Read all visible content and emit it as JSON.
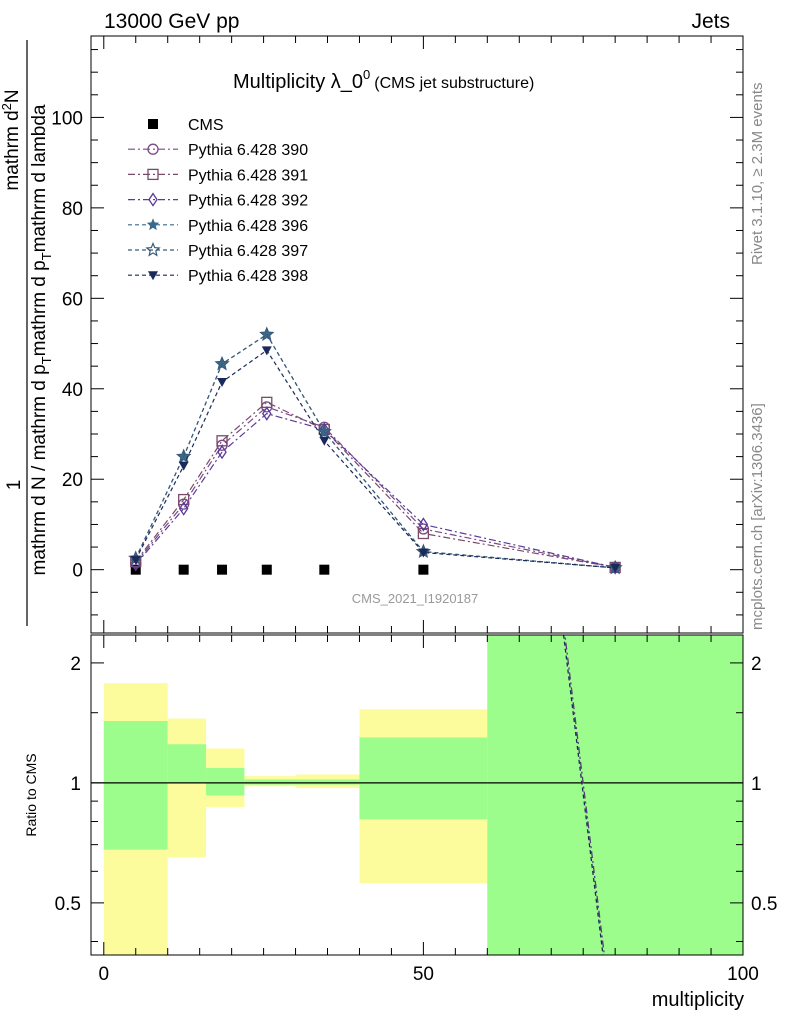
{
  "header": {
    "left": "13000 GeV pp",
    "right": "Jets"
  },
  "side_labels": {
    "right_top": "Rivet 3.1.10, ≥ 2.3M events",
    "right_bottom": "mcplots.cern.ch [arXiv:1306.3436]"
  },
  "chart_data": [
    {
      "type": "line",
      "title": "Multiplicity λ_0",
      "title_superscript": "0",
      "subtitle": "(CMS jet substructure)",
      "watermark": "CMS_2021_I1920187",
      "ylabel_parts": [
        "1",
        "mathrm d N / mathrm d p",
        "T",
        "mathrm d p",
        "T",
        "mathrm d lambda",
        "mathrm d",
        "2",
        "N"
      ],
      "ylim": [
        -14,
        118
      ],
      "xlim": [
        -2,
        100
      ],
      "yticks": [
        0,
        20,
        40,
        60,
        80,
        100
      ],
      "x": [
        5,
        12.5,
        18.5,
        25.5,
        34.5,
        50,
        80
      ],
      "series": [
        {
          "name": "CMS",
          "marker": "square",
          "color": "#000000",
          "dash": "none",
          "values": [
            0,
            0,
            0,
            0,
            0,
            0,
            null
          ]
        },
        {
          "name": "Pythia 6.428 390",
          "marker": "circle",
          "color": "#7a4a8a",
          "dash": "7,3,2,3",
          "values": [
            1.5,
            14.5,
            27.5,
            36,
            31.5,
            9,
            0.5
          ]
        },
        {
          "name": "Pythia 6.428 391",
          "marker": "square-open",
          "color": "#7a4a6a",
          "dash": "7,3,2,3",
          "values": [
            1.8,
            15.5,
            28.5,
            37,
            31,
            8,
            0.5
          ]
        },
        {
          "name": "Pythia 6.428 392",
          "marker": "diamond-open",
          "color": "#5a3a9a",
          "dash": "7,3,2,3",
          "values": [
            1.2,
            13.5,
            26,
            34.5,
            31,
            10,
            0.5
          ]
        },
        {
          "name": "Pythia 6.428 396",
          "marker": "star",
          "color": "#3a6a8a",
          "dash": "4,3",
          "values": [
            2.5,
            25,
            45.5,
            52,
            30.5,
            4,
            0.4
          ]
        },
        {
          "name": "Pythia 6.428 397",
          "marker": "star-open",
          "color": "#3a5a7a",
          "dash": "4,3",
          "values": [
            2.5,
            25,
            45.5,
            52,
            30.5,
            4,
            0.4
          ]
        },
        {
          "name": "Pythia 6.428 398",
          "marker": "triangle-down",
          "color": "#1a2a5a",
          "dash": "4,3",
          "values": [
            2.2,
            23,
            41.5,
            48.5,
            28.5,
            3.8,
            0.4
          ]
        }
      ]
    },
    {
      "type": "area",
      "ylabel": "Ratio to CMS",
      "xlabel": "multiplicity",
      "ylog": true,
      "ylim": [
        0.37,
        2.35
      ],
      "xlim": [
        -2,
        100
      ],
      "xticks": [
        0,
        50,
        100
      ],
      "yticks": [
        0.5,
        1,
        2
      ],
      "bands": [
        {
          "x0": 0,
          "x1": 10,
          "inner": [
            0.68,
            1.43
          ],
          "outer": [
            0.3,
            1.78
          ]
        },
        {
          "x0": 10,
          "x1": 16,
          "inner": [
            1.0,
            1.25
          ],
          "outer": [
            0.65,
            1.45
          ]
        },
        {
          "x0": 16,
          "x1": 22,
          "inner": [
            0.93,
            1.09
          ],
          "outer": [
            0.87,
            1.22
          ]
        },
        {
          "x0": 22,
          "x1": 30,
          "inner": [
            0.99,
            1.02
          ],
          "outer": [
            0.98,
            1.04
          ]
        },
        {
          "x0": 30,
          "x1": 40,
          "inner": [
            0.99,
            1.02
          ],
          "outer": [
            0.97,
            1.05
          ]
        },
        {
          "x0": 40,
          "x1": 60,
          "inner": [
            0.81,
            1.3
          ],
          "outer": [
            0.56,
            1.53
          ]
        },
        {
          "x0": 60,
          "x1": 100,
          "inner": [
            0.3,
            2.5
          ],
          "outer": [
            0.3,
            2.5
          ]
        }
      ],
      "ratio_lines": [
        {
          "color": "#5a3a7a",
          "dash": "7,3,2,3",
          "x": [
            72,
            79
          ],
          "values": [
            2.45,
            0.3
          ]
        },
        {
          "color": "#1a2a5a",
          "dash": "4,3",
          "x": [
            71.8,
            78.8
          ],
          "values": [
            2.45,
            0.3
          ]
        }
      ],
      "colors": {
        "inner": "#9cfc8c",
        "outer": "#fcfc9c",
        "reference": "#000000"
      }
    }
  ]
}
